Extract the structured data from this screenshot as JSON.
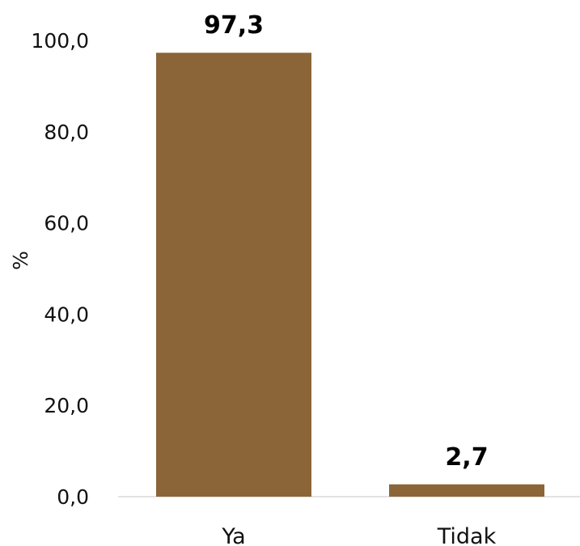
{
  "chart_data": {
    "type": "bar",
    "categories": [
      "Ya",
      "Tidak"
    ],
    "values": [
      97.3,
      2.7
    ],
    "value_labels": [
      "97,3",
      "2,7"
    ],
    "ylabel": "%",
    "ylim": [
      0,
      100
    ],
    "yticks": [
      0,
      20,
      40,
      60,
      80,
      100
    ],
    "ytick_labels": [
      "0,0",
      "20,0",
      "40,0",
      "60,0",
      "80,0",
      "100,0"
    ],
    "grid": false,
    "legend": "none",
    "bar_color": "#8B6538",
    "baseline_color": "#d9d9d9"
  }
}
